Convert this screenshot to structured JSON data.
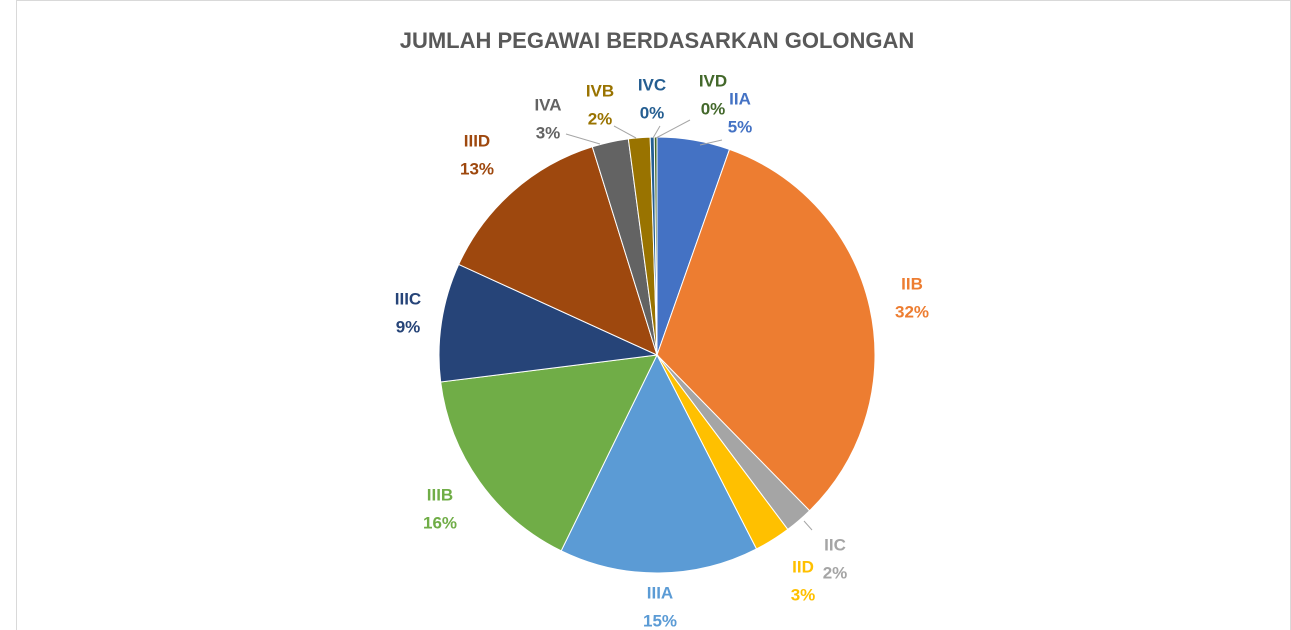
{
  "chart_data": {
    "type": "pie",
    "title": "JUMLAH PEGAWAI BERDASARKAN GOLONGAN",
    "categories": [
      "IIA",
      "IIB",
      "IIC",
      "IID",
      "IIIA",
      "IIIB",
      "IIIC",
      "IIID",
      "IVA",
      "IVB",
      "IVC",
      "IVD"
    ],
    "values": [
      5.4,
      32.3,
      2.1,
      2.7,
      14.8,
      15.8,
      8.8,
      13.4,
      2.7,
      1.6,
      0.3,
      0.2
    ],
    "value_labels": [
      "5%",
      "32%",
      "2%",
      "3%",
      "15%",
      "16%",
      "9%",
      "13%",
      "3%",
      "2%",
      "0%",
      "0%"
    ],
    "colors": [
      "#4472c4",
      "#ed7d31",
      "#a5a5a5",
      "#ffc000",
      "#5b9bd5",
      "#70ad47",
      "#264478",
      "#9e480e",
      "#636363",
      "#997300",
      "#255e91",
      "#43682b"
    ]
  }
}
